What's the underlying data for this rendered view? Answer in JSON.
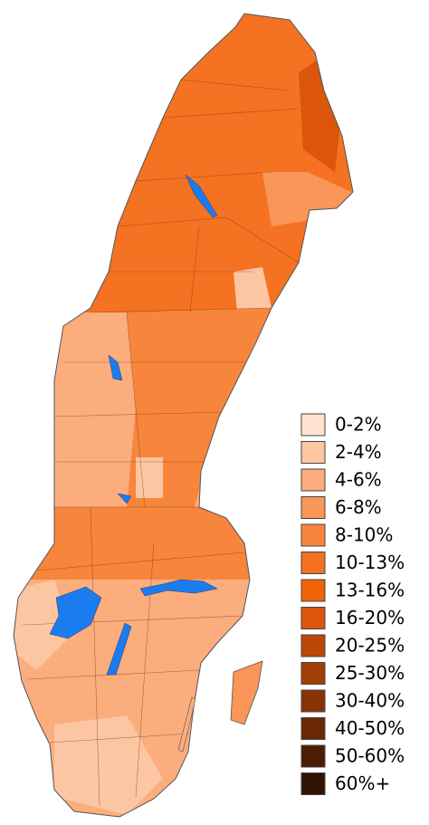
{
  "legend": {
    "items": [
      {
        "label": "0-2%",
        "color": "#fde3d0"
      },
      {
        "label": "2-4%",
        "color": "#fcc6a2"
      },
      {
        "label": "4-6%",
        "color": "#fbad7d"
      },
      {
        "label": "6-8%",
        "color": "#f99658"
      },
      {
        "label": "8-10%",
        "color": "#f8853c"
      },
      {
        "label": "10-13%",
        "color": "#f47222"
      },
      {
        "label": "13-16%",
        "color": "#f06306"
      },
      {
        "label": "16-20%",
        "color": "#db560a"
      },
      {
        "label": "20-25%",
        "color": "#bc4806"
      },
      {
        "label": "25-30%",
        "color": "#a23e06"
      },
      {
        "label": "30-40%",
        "color": "#873305"
      },
      {
        "label": "40-50%",
        "color": "#6a2804"
      },
      {
        "label": "50-60%",
        "color": "#4d1d03"
      },
      {
        "label": "60%+",
        "color": "#301302"
      }
    ]
  }
}
